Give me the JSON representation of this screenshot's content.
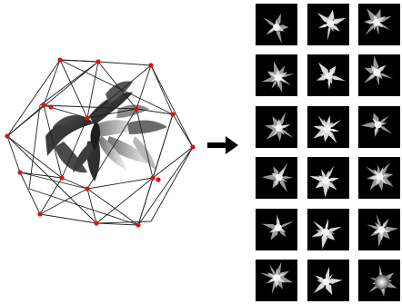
{
  "colors": {
    "background": "#ffffff",
    "cage_lines": "#222222",
    "vertex": "#dd1111",
    "plant_dark": "#3a3a3a",
    "plant_mid": "#7a7a7a",
    "plant_light": "#c8c8c8",
    "tile_bg": "#000000",
    "arrow": "#000000"
  },
  "diagram": {
    "left_object": "3d-plant-in-icosahedron-cage",
    "arrow": "right-arrow",
    "grid": {
      "rows": 6,
      "cols": 3
    }
  }
}
